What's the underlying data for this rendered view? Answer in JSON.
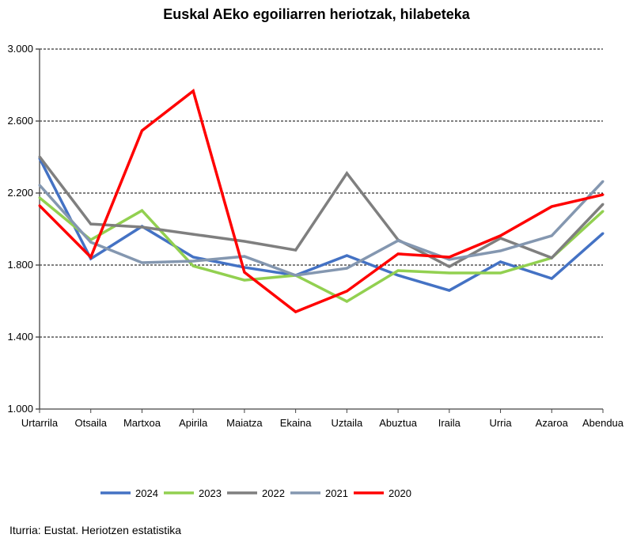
{
  "chart_data": {
    "type": "line",
    "title": "Euskal AEko egoiliarren heriotzak, hilabeteka",
    "xlabel": "",
    "ylabel": "",
    "ylim": [
      1000,
      3000
    ],
    "yticks": [
      1000,
      1400,
      1800,
      2200,
      2600,
      3000
    ],
    "ytick_labels": [
      "1.000",
      "1.400",
      "1.800",
      "2.200",
      "2.600",
      "3.000"
    ],
    "grid": true,
    "legend_position": "bottom",
    "categories": [
      "Urtarrila",
      "Otsaila",
      "Martxoa",
      "Apirila",
      "Maiatza",
      "Ekaina",
      "Uztaila",
      "Abuztua",
      "Iraila",
      "Urria",
      "Azaroa",
      "Abendua"
    ],
    "series": [
      {
        "name": "2024",
        "color": "#4472C4",
        "values": [
          2393,
          1835,
          2015,
          1844,
          1787,
          1743,
          1853,
          1743,
          1659,
          1818,
          1725,
          1976
        ]
      },
      {
        "name": "2023",
        "color": "#92D050",
        "values": [
          2174,
          1940,
          2103,
          1795,
          1716,
          1743,
          1598,
          1769,
          1756,
          1756,
          1840,
          2099
        ]
      },
      {
        "name": "2022",
        "color": "#7F7F7F",
        "values": [
          2402,
          2028,
          2011,
          1971,
          1932,
          1883,
          2310,
          1940,
          1791,
          1949,
          1840,
          2138
        ]
      },
      {
        "name": "2021",
        "color": "#8497B0",
        "values": [
          2244,
          1927,
          1813,
          1822,
          1848,
          1743,
          1782,
          1936,
          1831,
          1879,
          1963,
          2265
        ]
      },
      {
        "name": "2020",
        "color": "#FF0000",
        "values": [
          2130,
          1844,
          2547,
          2767,
          1760,
          1540,
          1655,
          1862,
          1844,
          1963,
          2125,
          2191
        ]
      }
    ]
  },
  "source": "Iturria: Eustat. Heriotzen estatistika"
}
